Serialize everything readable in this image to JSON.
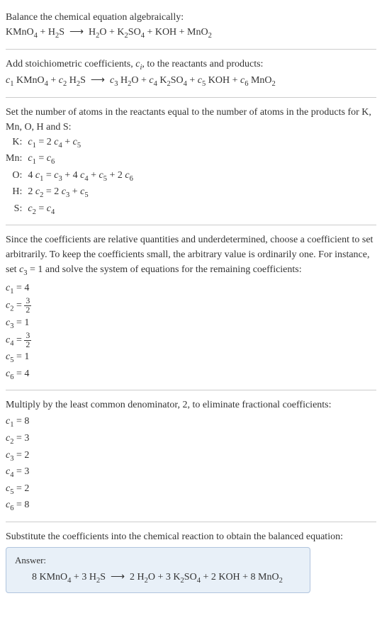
{
  "section1": {
    "line1": "Balance the chemical equation algebraically:",
    "eq_html": "KMnO<sub class=\"sub\">4</sub> + H<sub class=\"sub\">2</sub>S &nbsp;⟶&nbsp; H<sub class=\"sub\">2</sub>O + K<sub class=\"sub\">2</sub>SO<sub class=\"sub\">4</sub> + KOH + MnO<sub class=\"sub\">2</sub>"
  },
  "section2": {
    "line1_html": "Add stoichiometric coefficients, <span class=\"italic\">c<sub class=\"sub\">i</sub></span>, to the reactants and products:",
    "eq_html": "<span class=\"italic\">c</span><sub class=\"sub\">1</sub> KMnO<sub class=\"sub\">4</sub> + <span class=\"italic\">c</span><sub class=\"sub\">2</sub> H<sub class=\"sub\">2</sub>S &nbsp;⟶&nbsp; <span class=\"italic\">c</span><sub class=\"sub\">3</sub> H<sub class=\"sub\">2</sub>O + <span class=\"italic\">c</span><sub class=\"sub\">4</sub> K<sub class=\"sub\">2</sub>SO<sub class=\"sub\">4</sub> + <span class=\"italic\">c</span><sub class=\"sub\">5</sub> KOH + <span class=\"italic\">c</span><sub class=\"sub\">6</sub> MnO<sub class=\"sub\">2</sub>"
  },
  "section3": {
    "line1": "Set the number of atoms in the reactants equal to the number of atoms in the products for K, Mn, O, H and S:",
    "rows": [
      {
        "label": "K:",
        "eq_html": "<span class=\"italic\">c</span><sub class=\"sub\">1</sub> = 2 <span class=\"italic\">c</span><sub class=\"sub\">4</sub> + <span class=\"italic\">c</span><sub class=\"sub\">5</sub>"
      },
      {
        "label": "Mn:",
        "eq_html": "<span class=\"italic\">c</span><sub class=\"sub\">1</sub> = <span class=\"italic\">c</span><sub class=\"sub\">6</sub>"
      },
      {
        "label": "O:",
        "eq_html": "4 <span class=\"italic\">c</span><sub class=\"sub\">1</sub> = <span class=\"italic\">c</span><sub class=\"sub\">3</sub> + 4 <span class=\"italic\">c</span><sub class=\"sub\">4</sub> + <span class=\"italic\">c</span><sub class=\"sub\">5</sub> + 2 <span class=\"italic\">c</span><sub class=\"sub\">6</sub>"
      },
      {
        "label": "H:",
        "eq_html": "2 <span class=\"italic\">c</span><sub class=\"sub\">2</sub> = 2 <span class=\"italic\">c</span><sub class=\"sub\">3</sub> + <span class=\"italic\">c</span><sub class=\"sub\">5</sub>"
      },
      {
        "label": "S:",
        "eq_html": "<span class=\"italic\">c</span><sub class=\"sub\">2</sub> = <span class=\"italic\">c</span><sub class=\"sub\">4</sub>"
      }
    ]
  },
  "section4": {
    "line1_html": "Since the coefficients are relative quantities and underdetermined, choose a coefficient to set arbitrarily. To keep the coefficients small, the arbitrary value is ordinarily one. For instance, set <span class=\"italic\">c</span><sub class=\"sub\">3</sub> = 1 and solve the system of equations for the remaining coefficients:",
    "coeffs": [
      {
        "html": "<span class=\"italic\">c</span><sub class=\"sub\">1</sub> = 4"
      },
      {
        "html": "<span class=\"italic\">c</span><sub class=\"sub\">2</sub> = <span class=\"frac\"><span class=\"frac-num\">3</span><span class=\"frac-den\">2</span></span>"
      },
      {
        "html": "<span class=\"italic\">c</span><sub class=\"sub\">3</sub> = 1"
      },
      {
        "html": "<span class=\"italic\">c</span><sub class=\"sub\">4</sub> = <span class=\"frac\"><span class=\"frac-num\">3</span><span class=\"frac-den\">2</span></span>"
      },
      {
        "html": "<span class=\"italic\">c</span><sub class=\"sub\">5</sub> = 1"
      },
      {
        "html": "<span class=\"italic\">c</span><sub class=\"sub\">6</sub> = 4"
      }
    ]
  },
  "section5": {
    "line1": "Multiply by the least common denominator, 2, to eliminate fractional coefficients:",
    "coeffs": [
      {
        "html": "<span class=\"italic\">c</span><sub class=\"sub\">1</sub> = 8"
      },
      {
        "html": "<span class=\"italic\">c</span><sub class=\"sub\">2</sub> = 3"
      },
      {
        "html": "<span class=\"italic\">c</span><sub class=\"sub\">3</sub> = 2"
      },
      {
        "html": "<span class=\"italic\">c</span><sub class=\"sub\">4</sub> = 3"
      },
      {
        "html": "<span class=\"italic\">c</span><sub class=\"sub\">5</sub> = 2"
      },
      {
        "html": "<span class=\"italic\">c</span><sub class=\"sub\">6</sub> = 8"
      }
    ]
  },
  "section6": {
    "line1": "Substitute the coefficients into the chemical reaction to obtain the balanced equation:",
    "answer_label": "Answer:",
    "answer_eq_html": "8 KMnO<sub class=\"sub\">4</sub> + 3 H<sub class=\"sub\">2</sub>S &nbsp;⟶&nbsp; 2 H<sub class=\"sub\">2</sub>O + 3 K<sub class=\"sub\">2</sub>SO<sub class=\"sub\">4</sub> + 2 KOH + 8 MnO<sub class=\"sub\">2</sub>"
  },
  "colors": {
    "text": "#333333",
    "rule": "#cccccc",
    "box_bg": "#e8f0f8",
    "box_border": "#b0c4de"
  }
}
